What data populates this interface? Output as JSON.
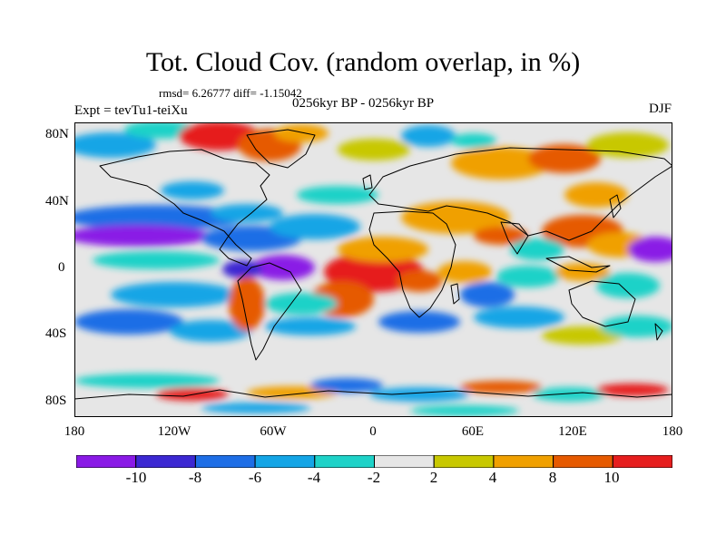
{
  "header": {
    "title": "Tot. Cloud Cov. (random overlap, in %)",
    "stats": "rmsd= 6.26777 diff= -1.15042",
    "experiment": "Expt = tevTu1-teiXu",
    "period": "0256kyr BP - 0256kyr BP",
    "season": "DJF"
  },
  "axes": {
    "y_ticks": [
      "80N",
      "40N",
      "0",
      "40S",
      "80S"
    ],
    "x_ticks": [
      "180",
      "120W",
      "60W",
      "0",
      "60E",
      "120E",
      "180"
    ]
  },
  "colorbar": {
    "labels": [
      "-10",
      "-8",
      "-6",
      "-4",
      "-2",
      "2",
      "4",
      "8",
      "10"
    ],
    "colors": [
      "#8a1ae6",
      "#3c28d2",
      "#1e6ee6",
      "#14a5e6",
      "#1ed2c8",
      "#e6e6e6",
      "#c8c800",
      "#f0a000",
      "#e65a00",
      "#e61e1e"
    ]
  },
  "map": {
    "background_color": "#e6e6e6",
    "coastline_color": "#000000"
  }
}
